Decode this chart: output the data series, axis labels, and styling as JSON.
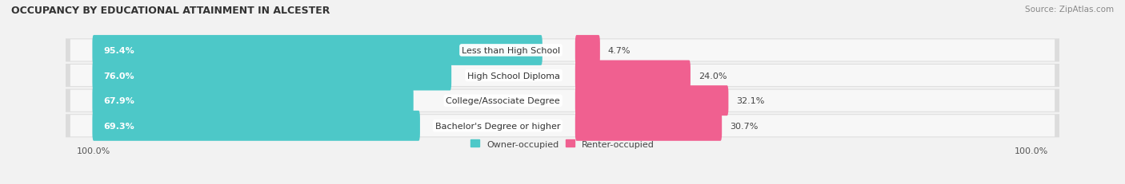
{
  "title": "OCCUPANCY BY EDUCATIONAL ATTAINMENT IN ALCESTER",
  "source": "Source: ZipAtlas.com",
  "categories": [
    "Less than High School",
    "High School Diploma",
    "College/Associate Degree",
    "Bachelor's Degree or higher"
  ],
  "owner_values": [
    95.4,
    76.0,
    67.9,
    69.3
  ],
  "renter_values": [
    4.7,
    24.0,
    32.1,
    30.7
  ],
  "owner_color": "#4dc8c8",
  "renter_color": "#f06090",
  "bg_color": "#f2f2f2",
  "row_bg_color": "#e8e8e8",
  "bar_height": 0.6,
  "title_fontsize": 9,
  "source_fontsize": 7.5,
  "bar_label_fontsize": 8,
  "cat_label_fontsize": 8,
  "renter_val_fontsize": 8,
  "legend_fontsize": 8,
  "axis_label_fontsize": 8
}
